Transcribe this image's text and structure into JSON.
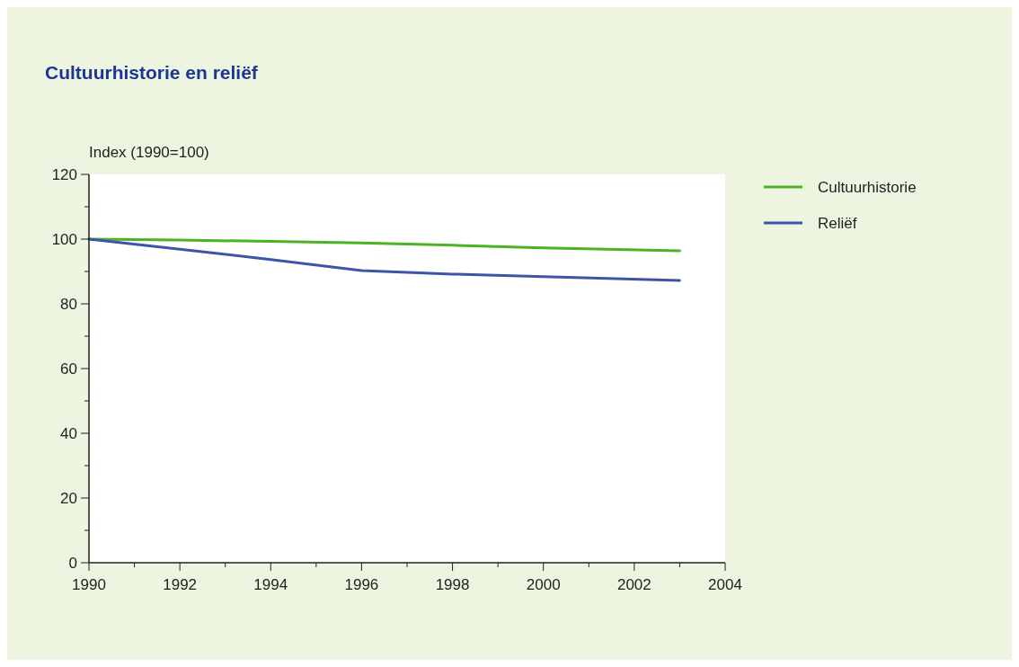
{
  "chart_data": {
    "type": "line",
    "title": "Cultuurhistorie en reliëf",
    "ylabel": "Index (1990=100)",
    "x": [
      1990,
      1992,
      1994,
      1996,
      1998,
      2000,
      2003
    ],
    "series": [
      {
        "name": "Cultuurhistorie",
        "color": "#4cb325",
        "values": [
          100,
          99.7,
          99.3,
          98.8,
          98.1,
          97.3,
          96.4
        ]
      },
      {
        "name": "Reliëf",
        "color": "#3c55a8",
        "values": [
          100,
          96.9,
          93.7,
          90.3,
          89.2,
          88.4,
          87.2
        ]
      }
    ],
    "xlim": [
      1990,
      2004
    ],
    "xticks": [
      1990,
      {
        "value": 1991,
        "label": null
      },
      1992,
      {
        "value": 1993,
        "label": null
      },
      1994,
      {
        "value": 1995,
        "label": null
      },
      1996,
      {
        "value": 1997,
        "label": null
      },
      1998,
      {
        "value": 1999,
        "label": null
      },
      2000,
      {
        "value": 2001,
        "label": null
      },
      2002,
      {
        "value": 2003,
        "label": null
      },
      2004
    ],
    "ylim": [
      0,
      120
    ],
    "yticks": [
      0,
      {
        "value": 10,
        "label": null
      },
      20,
      {
        "value": 30,
        "label": null
      },
      40,
      {
        "value": 50,
        "label": null
      },
      60,
      {
        "value": 70,
        "label": null
      },
      80,
      {
        "value": 90,
        "label": null
      },
      100,
      {
        "value": 110,
        "label": null
      },
      120
    ],
    "grid": false,
    "legend": "right",
    "marker": "none",
    "line_style": "solid"
  }
}
